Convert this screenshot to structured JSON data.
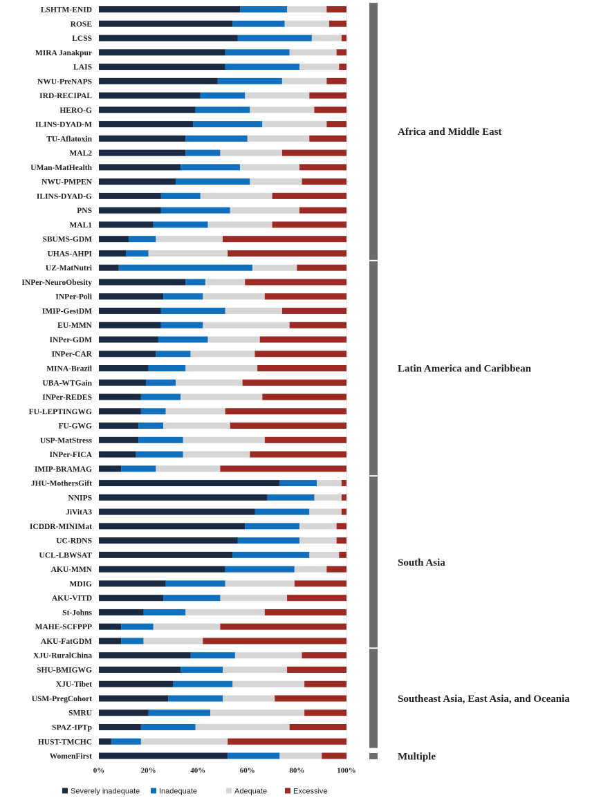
{
  "chart_data": {
    "type": "bar",
    "orientation": "horizontal",
    "stacked": true,
    "percent": true,
    "xlim": [
      0,
      100
    ],
    "x_ticks": [
      "0%",
      "20%",
      "40%",
      "60%",
      "80%",
      "100%"
    ],
    "legend_position": "bottom",
    "colors": {
      "Severely inadequate": "#1b2a41",
      "Inadequate": "#1170bd",
      "Adequate": "#d6d6d6",
      "Excessive": "#9b2a24"
    },
    "categories": [
      "LSHTM-ENID",
      "ROSE",
      "LCSS",
      "MIRA Janakpur",
      "LAIS",
      "NWU-PreNAPS",
      "IRD-RECIPAL",
      "HERO-G",
      "ILINS-DYAD-M",
      "TU-Aflatoxin",
      "MAL2",
      "UMan-MatHealth",
      "NWU-PMPEN",
      "ILINS-DYAD-G",
      "PNS",
      "MAL1",
      "SBUMS-GDM",
      "UHAS-AHPI",
      "UZ-MatNutri",
      "INPer-NeuroObesity",
      "INPer-Poli",
      "IMIP-GestDM",
      "EU-MMN",
      "INPer-GDM",
      "INPer-CAR",
      "MINA-Brazil",
      "UBA-WTGain",
      "INPer-REDES",
      "FU-LEPTINGWG",
      "FU-GWG",
      "USP-MatStress",
      "INPer-FICA",
      "IMIP-BRAMAG",
      "JHU-MothersGift",
      "NNIPS",
      "JiVitA3",
      "ICDDR-MINIMat",
      "UC-RDNS",
      "UCL-LBWSAT",
      "AKU-MMN",
      "MDIG",
      "AKU-VITD",
      "St-Johns",
      "MAHE-SCFPPP",
      "AKU-FatGDM",
      "XJU-RuralChina",
      "SHU-BMIGWG",
      "XJU-Tibet",
      "USM-PregCohort",
      "SMRU",
      "SPAZ-IPTp",
      "HUST-TMCHC",
      "WomenFirst"
    ],
    "series": [
      {
        "name": "Severely inadequate",
        "values": [
          57,
          54,
          56,
          51,
          51,
          48,
          41,
          39,
          38,
          35,
          35,
          33,
          31,
          25,
          25,
          22,
          12,
          11,
          8,
          35,
          26,
          25,
          25,
          24,
          23,
          20,
          19,
          17,
          17,
          16,
          16,
          15,
          9,
          73,
          68,
          63,
          59,
          56,
          54,
          51,
          27,
          26,
          18,
          9,
          9,
          37,
          33,
          30,
          28,
          20,
          17,
          5,
          52
        ]
      },
      {
        "name": "Inadequate",
        "values": [
          19,
          21,
          30,
          26,
          30,
          26,
          18,
          22,
          28,
          25,
          14,
          24,
          30,
          16,
          28,
          22,
          11,
          9,
          54,
          8,
          16,
          26,
          17,
          20,
          14,
          15,
          12,
          16,
          10,
          10,
          18,
          19,
          14,
          15,
          19,
          22,
          22,
          25,
          31,
          28,
          24,
          23,
          17,
          13,
          9,
          18,
          17,
          24,
          22,
          25,
          22,
          12,
          21
        ]
      },
      {
        "name": "Adequate",
        "values": [
          16,
          18,
          12,
          19,
          16,
          18,
          26,
          26,
          26,
          25,
          25,
          24,
          21,
          29,
          28,
          26,
          27,
          32,
          18,
          16,
          25,
          23,
          35,
          21,
          26,
          29,
          27,
          33,
          24,
          27,
          33,
          27,
          26,
          10,
          11,
          13,
          15,
          15,
          12,
          13,
          28,
          27,
          32,
          27,
          24,
          27,
          26,
          29,
          21,
          38,
          38,
          35,
          17
        ]
      },
      {
        "name": "Excessive",
        "values": [
          8,
          7,
          2,
          4,
          3,
          8,
          15,
          13,
          8,
          15,
          26,
          19,
          18,
          30,
          19,
          30,
          50,
          48,
          20,
          41,
          33,
          26,
          23,
          35,
          37,
          36,
          42,
          34,
          49,
          47,
          33,
          39,
          51,
          2,
          2,
          2,
          4,
          4,
          3,
          8,
          21,
          24,
          33,
          51,
          58,
          18,
          24,
          17,
          29,
          17,
          23,
          48,
          10
        ]
      }
    ],
    "regions": [
      {
        "label": "Africa and Middle East",
        "from": 0,
        "to": 17
      },
      {
        "label": "Latin America and Caribbean",
        "from": 18,
        "to": 32
      },
      {
        "label": "South Asia",
        "from": 33,
        "to": 44
      },
      {
        "label": "Southeast Asia, East Asia, and Oceania",
        "from": 45,
        "to": 51
      },
      {
        "label": "Multiple",
        "from": 52,
        "to": 52
      }
    ]
  }
}
